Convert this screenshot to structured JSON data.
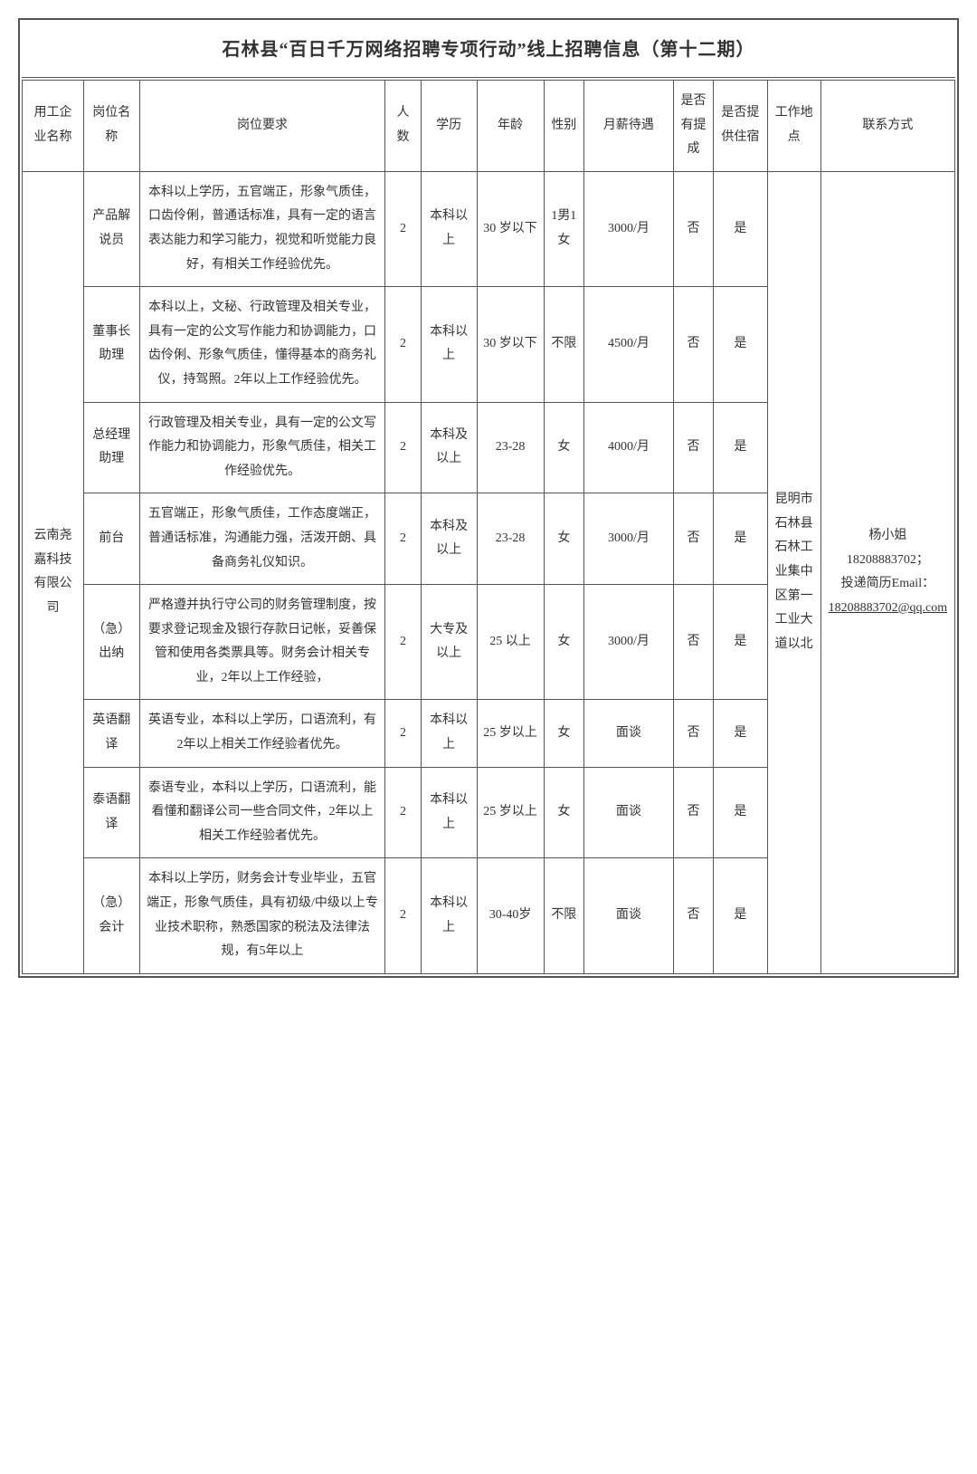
{
  "title": "石林县“百日千万网络招聘专项行动”线上招聘信息（第十二期）",
  "headers": {
    "company": "用工企业名称",
    "position": "岗位名称",
    "requirement": "岗位要求",
    "count": "人数",
    "education": "学历",
    "age": "年龄",
    "gender": "性别",
    "salary": "月薪待遇",
    "commission": "是否有提成",
    "dorm": "是否提供住宿",
    "location": "工作地点",
    "contact": "联系方式"
  },
  "company": "云南尧嘉科技有限公司",
  "location": "昆明市石林县石林工业集中区第一工业大道以北",
  "contact": {
    "name": "杨小姐",
    "phone": "18208883702；",
    "label2": "投递简历Email：",
    "email": "18208883702@qq.com"
  },
  "rows": [
    {
      "position": "产品解说员",
      "requirement": "本科以上学历，五官端正，形象气质佳，口齿伶俐，普通话标准，具有一定的语言表达能力和学习能力，视觉和听觉能力良好，有相关工作经验优先。",
      "count": "2",
      "education": "本科以上",
      "age": "30 岁以下",
      "gender": "1男1女",
      "salary": "3000/月",
      "commission": "否",
      "dorm": "是"
    },
    {
      "position": "董事长助理",
      "requirement": "本科以上，文秘、行政管理及相关专业，具有一定的公文写作能力和协调能力，口齿伶俐、形象气质佳，懂得基本的商务礼仪，持驾照。2年以上工作经验优先。",
      "count": "2",
      "education": "本科以上",
      "age": "30 岁以下",
      "gender": "不限",
      "salary": "4500/月",
      "commission": "否",
      "dorm": "是"
    },
    {
      "position": "总经理助理",
      "requirement": "行政管理及相关专业，具有一定的公文写作能力和协调能力，形象气质佳，相关工作经验优先。",
      "count": "2",
      "education": "本科及以上",
      "age": "23-28",
      "gender": "女",
      "salary": "4000/月",
      "commission": "否",
      "dorm": "是"
    },
    {
      "position": "前台",
      "requirement": "五官端正，形象气质佳，工作态度端正，普通话标准，沟通能力强，活泼开朗、具备商务礼仪知识。",
      "count": "2",
      "education": "本科及以上",
      "age": "23-28",
      "gender": "女",
      "salary": "3000/月",
      "commission": "否",
      "dorm": "是"
    },
    {
      "position": "（急）出纳",
      "requirement": "严格遵并执行守公司的财务管理制度，按要求登记现金及银行存款日记帐，妥善保管和使用各类票具等。财务会计相关专业，2年以上工作经验，",
      "count": "2",
      "education": "大专及以上",
      "age": "25 以上",
      "gender": "女",
      "salary": "3000/月",
      "commission": "否",
      "dorm": "是"
    },
    {
      "position": "英语翻译",
      "requirement": "英语专业，本科以上学历，口语流利，有2年以上相关工作经验者优先。",
      "count": "2",
      "education": "本科以上",
      "age": "25 岁以上",
      "gender": "女",
      "salary": "面谈",
      "commission": "否",
      "dorm": "是"
    },
    {
      "position": "泰语翻译",
      "requirement": "泰语专业，本科以上学历，口语流利，能看懂和翻译公司一些合同文件，2年以上相关工作经验者优先。",
      "count": "2",
      "education": "本科以上",
      "age": "25 岁以上",
      "gender": "女",
      "salary": "面谈",
      "commission": "否",
      "dorm": "是"
    },
    {
      "position": "（急）会计",
      "requirement": "本科以上学历，财务会计专业毕业，五官端正，形象气质佳，具有初级/中级以上专业技术职称，熟悉国家的税法及法律法规，有5年以上",
      "count": "2",
      "education": "本科以上",
      "age": "30-40岁",
      "gender": "不限",
      "salary": "面谈",
      "commission": "否",
      "dorm": "是"
    }
  ]
}
